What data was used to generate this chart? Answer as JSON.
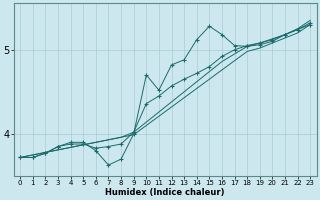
{
  "xlabel": "Humidex (Indice chaleur)",
  "bg_color": "#cce8ee",
  "line_color": "#1a6b6b",
  "grid_color": "#aaccd4",
  "xlim": [
    -0.5,
    23.5
  ],
  "ylim": [
    3.5,
    5.55
  ],
  "yticks": [
    4,
    5
  ],
  "xticks": [
    0,
    1,
    2,
    3,
    4,
    5,
    6,
    7,
    8,
    9,
    10,
    11,
    12,
    13,
    14,
    15,
    16,
    17,
    18,
    19,
    20,
    21,
    22,
    23
  ],
  "series_line": [
    [
      3.72,
      3.75,
      3.78,
      3.81,
      3.84,
      3.87,
      3.9,
      3.93,
      3.96,
      3.99,
      4.1,
      4.21,
      4.32,
      4.43,
      4.54,
      4.65,
      4.76,
      4.87,
      4.98,
      5.02,
      5.08,
      5.14,
      5.2,
      5.3
    ],
    [
      3.72,
      3.75,
      3.78,
      3.81,
      3.84,
      3.87,
      3.9,
      3.93,
      3.96,
      4.02,
      4.14,
      4.26,
      4.38,
      4.5,
      4.62,
      4.74,
      4.86,
      4.95,
      5.04,
      5.08,
      5.13,
      5.18,
      5.25,
      5.35
    ]
  ],
  "series_data": [
    [
      3.72,
      3.72,
      3.77,
      3.85,
      3.88,
      3.88,
      3.83,
      3.85,
      3.88,
      4.02,
      4.36,
      4.45,
      4.57,
      4.65,
      4.72,
      4.8,
      4.92,
      5.0,
      5.05,
      5.08,
      5.12,
      5.18,
      5.24,
      5.3
    ],
    [
      3.72,
      3.72,
      3.77,
      3.85,
      3.9,
      3.9,
      3.8,
      3.63,
      3.7,
      4.0,
      4.7,
      4.52,
      4.82,
      4.88,
      5.12,
      5.28,
      5.18,
      5.05,
      5.04,
      5.06,
      5.1,
      5.18,
      5.24,
      5.32
    ]
  ]
}
